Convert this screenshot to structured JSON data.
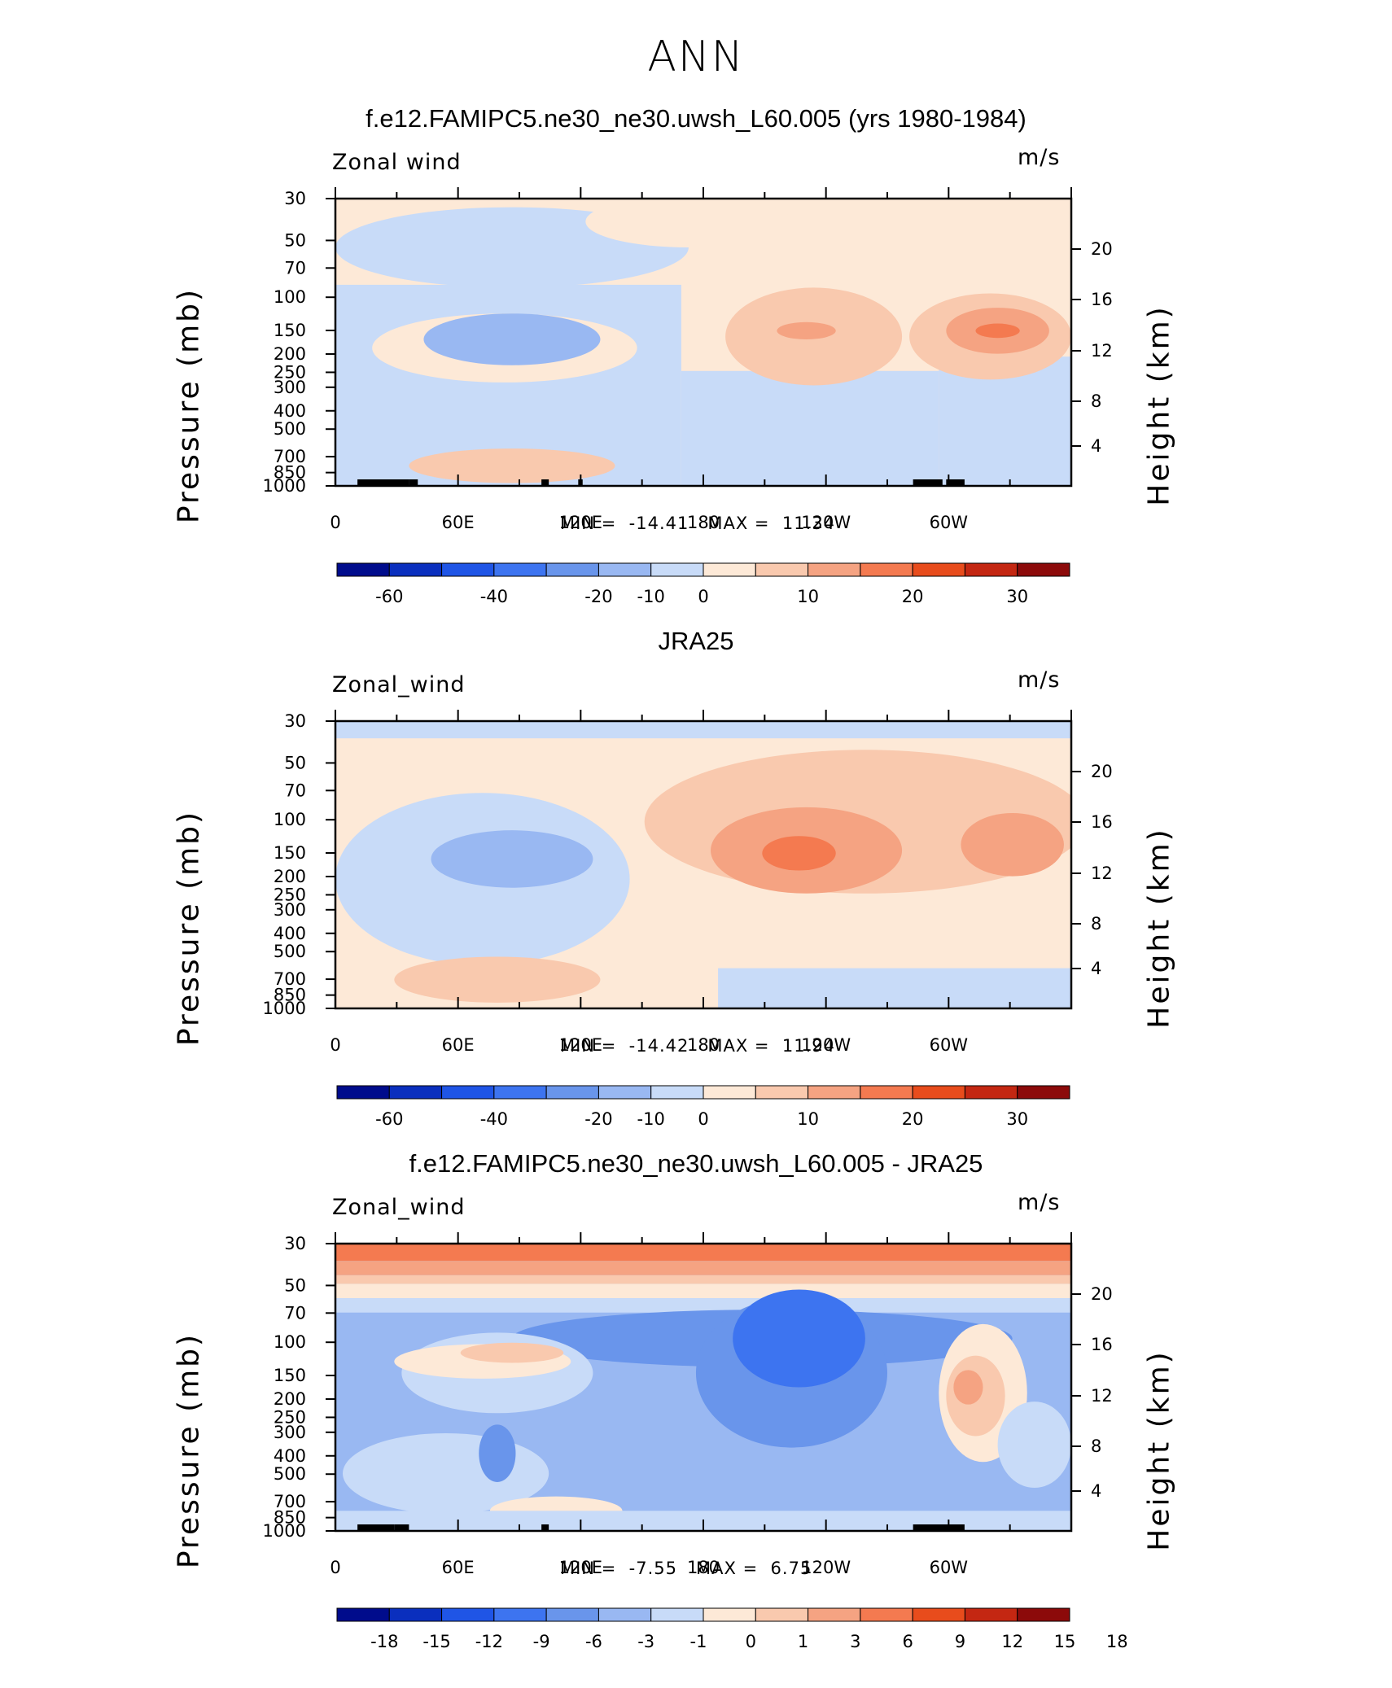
{
  "page": {
    "title": "ANN"
  },
  "colors": {
    "land": "#000000",
    "axis": "#000000",
    "palette": [
      "#000c8c",
      "#0a2fbe",
      "#1f55e6",
      "#3d74f0",
      "#6995eb",
      "#99b8f2",
      "#c8dbf8",
      "#fde9d7",
      "#f9c9ae",
      "#f5a382",
      "#f47a50",
      "#e84c1c",
      "#c42712",
      "#8c0a0a"
    ]
  },
  "chart_data": [
    {
      "type": "heatmap",
      "title": "f.e12.FAMIPC5.ne30_ne30.uwsh_L60.005 (yrs 1980-1984)",
      "variable": "Zonal wind",
      "units": "m/s",
      "ylabel": "Pressure  (mb)",
      "ylabel_right": "Height  (km)",
      "x_ticks": [
        "0",
        "60E",
        "120E",
        "180",
        "120W",
        "60W"
      ],
      "y_ticks": [
        "30",
        "50",
        "70",
        "100",
        "150",
        "200",
        "250",
        "300",
        "400",
        "500",
        "700",
        "850",
        "1000"
      ],
      "height_ticks": [
        "20",
        "16",
        "12",
        "8",
        "4"
      ],
      "stats": {
        "min_label": "MIN =",
        "min": "-14.41",
        "max_label": "MAX =",
        "max": "11.34"
      },
      "colorbar_levels": [
        "-60",
        "-40",
        "-20",
        "-10",
        "0",
        "10",
        "20",
        "30"
      ]
    },
    {
      "type": "heatmap",
      "title": "JRA25",
      "variable": "Zonal_wind",
      "units": "m/s",
      "ylabel": "Pressure  (mb)",
      "ylabel_right": "Height  (km)",
      "x_ticks": [
        "0",
        "60E",
        "120E",
        "180",
        "120W",
        "60W"
      ],
      "y_ticks": [
        "30",
        "50",
        "70",
        "100",
        "150",
        "200",
        "250",
        "300",
        "400",
        "500",
        "700",
        "850",
        "1000"
      ],
      "height_ticks": [
        "20",
        "16",
        "12",
        "8",
        "4"
      ],
      "stats": {
        "min_label": "MIN =",
        "min": "-14.42",
        "max_label": "MAX =",
        "max": "11.94"
      },
      "colorbar_levels": [
        "-60",
        "-40",
        "-20",
        "-10",
        "0",
        "10",
        "20",
        "30"
      ]
    },
    {
      "type": "heatmap",
      "title": "f.e12.FAMIPC5.ne30_ne30.uwsh_L60.005 - JRA25",
      "variable": "Zonal_wind",
      "units": "m/s",
      "ylabel": "Pressure  (mb)",
      "ylabel_right": "Height  (km)",
      "x_ticks": [
        "0",
        "60E",
        "120E",
        "180",
        "120W",
        "60W"
      ],
      "y_ticks": [
        "30",
        "50",
        "70",
        "100",
        "150",
        "200",
        "250",
        "300",
        "400",
        "500",
        "700",
        "850",
        "1000"
      ],
      "height_ticks": [
        "20",
        "16",
        "12",
        "8",
        "4"
      ],
      "stats": {
        "min_label": "MIN =",
        "min": "-7.55",
        "max_label": "MAX =",
        "max": "6.75"
      },
      "colorbar_levels": [
        "-18",
        "-15",
        "-12",
        "-9",
        "-6",
        "-3",
        "-1",
        "0",
        "1",
        "3",
        "6",
        "9",
        "12",
        "15",
        "18"
      ]
    }
  ]
}
